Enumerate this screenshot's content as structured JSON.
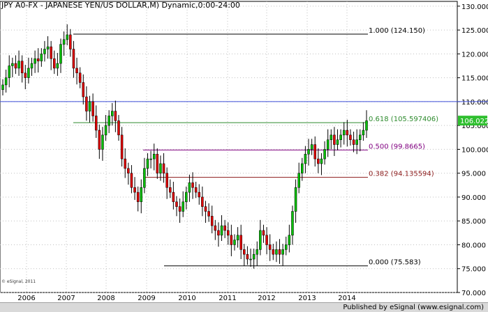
{
  "chart_data": {
    "type": "candlestick",
    "title": "JPY A0-FX - JAPANESE YEN/US DOLLAR,M) Dynamic,0:00-24:00",
    "ylim": [
      70,
      131
    ],
    "y_ticks": [
      "130.000",
      "125.000",
      "120.000",
      "115.000",
      "110.000",
      "105.000",
      "100.000",
      "95.000",
      "90.000",
      "85.000",
      "80.000",
      "75.000",
      "70.000"
    ],
    "x_ticks": [
      "2006",
      "2007",
      "2008",
      "2009",
      "2010",
      "2011",
      "2012",
      "2013",
      "2014"
    ],
    "current_price_label": "106.022",
    "current_price": 106.022,
    "horizontal_line": 110.0,
    "fib_levels": [
      {
        "label": "1.000 (124.150)",
        "value": 124.15,
        "color": "#000000"
      },
      {
        "label": "0.618 (105.597406)",
        "value": 105.597,
        "color": "#2e8b2e"
      },
      {
        "label": "0.500 (99.8665)",
        "value": 99.8665,
        "color": "#800080"
      },
      {
        "label": "0.382 (94.135594)",
        "value": 94.1356,
        "color": "#8b1a1a"
      },
      {
        "label": "0.000 (75.583)",
        "value": 75.583,
        "color": "#000000"
      }
    ],
    "closes": [
      113.5,
      115,
      117.5,
      118,
      117,
      118.5,
      116,
      115,
      117,
      118,
      119,
      118.5,
      120,
      121,
      121.5,
      119,
      117,
      118,
      122,
      123,
      124,
      121,
      117,
      116,
      114,
      111,
      108,
      110,
      107,
      104,
      100,
      103,
      105,
      107,
      108,
      106,
      103,
      98,
      96,
      95,
      92,
      91,
      89,
      92,
      96,
      98,
      98,
      99,
      95,
      97,
      95,
      92,
      91,
      89,
      88,
      87,
      89,
      91,
      93,
      92,
      91,
      90,
      88,
      87,
      86,
      84,
      83,
      82,
      84,
      83,
      82,
      80,
      81,
      82,
      79,
      78,
      77,
      77,
      78,
      79,
      83,
      82,
      80,
      79,
      78,
      79,
      78,
      79,
      80,
      82,
      87,
      92,
      95,
      97,
      99,
      100,
      101,
      98,
      97,
      98,
      100,
      102,
      103,
      101,
      102,
      103,
      104,
      103,
      102,
      101,
      102,
      103,
      104,
      106
    ]
  },
  "footer": {
    "published": "Published by eSignal (www.esignal.com)"
  },
  "copyright": "© eSignal, 2011"
}
